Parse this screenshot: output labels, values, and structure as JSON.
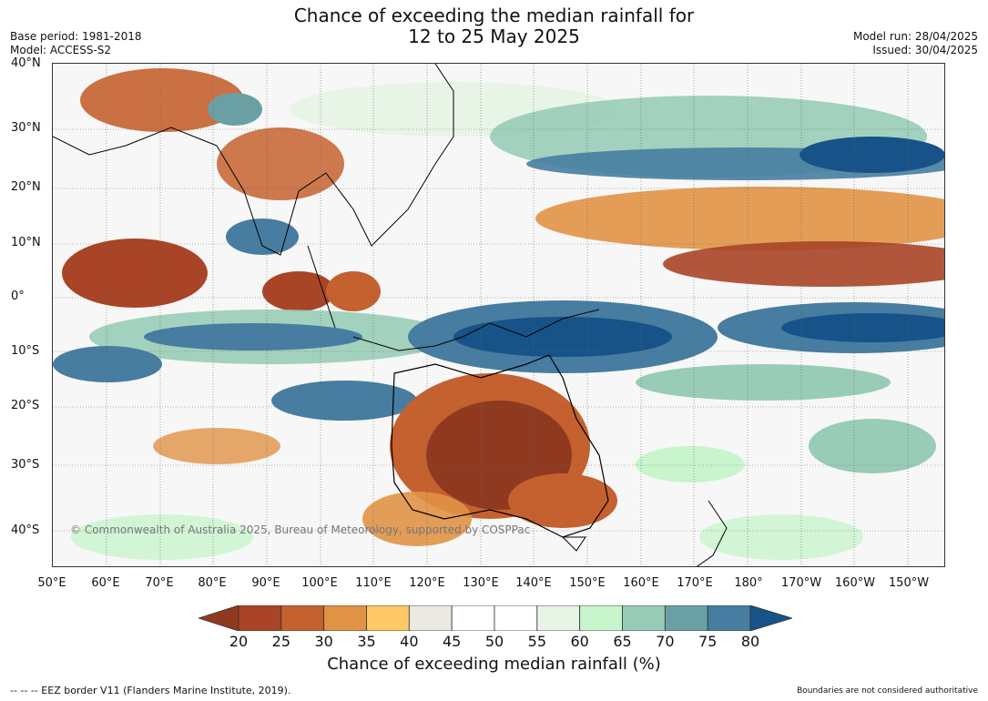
{
  "header": {
    "title_line1": "Chance of exceeding the median rainfall for",
    "title_line2": "12 to 25 May 2025",
    "base_period": "Base period: 1981-2018",
    "model": "Model: ACCESS-S2",
    "model_run": "Model run: 28/04/2025",
    "issued": "Issued: 30/04/2025"
  },
  "map": {
    "lat_labels": [
      "40°N",
      "30°N",
      "20°N",
      "10°N",
      "0°",
      "10°S",
      "20°S",
      "30°S",
      "40°S"
    ],
    "lon_labels": [
      "50°E",
      "60°E",
      "70°E",
      "80°E",
      "90°E",
      "100°E",
      "110°E",
      "120°E",
      "130°E",
      "140°E",
      "150°E",
      "160°E",
      "170°E",
      "180°",
      "170°W",
      "160°W",
      "150°W"
    ],
    "copyright": "© Commonwealth of Australia 2025, Bureau of Meteorology, supported by COSPPac"
  },
  "colorbar": {
    "ticks": [
      "20",
      "25",
      "30",
      "35",
      "40",
      "45",
      "50",
      "55",
      "60",
      "65",
      "70",
      "75",
      "80"
    ],
    "colors": [
      "#8f3a20",
      "#a94426",
      "#c5612f",
      "#e09245",
      "#fdc865",
      "#ece9e2",
      "#ffffff",
      "#ffffff",
      "#e8f5e6",
      "#c8f5cc",
      "#98ccb6",
      "#6aa0a4",
      "#467da0",
      "#175388"
    ],
    "label": "Chance of exceeding median rainfall (%)"
  },
  "footer": {
    "eez": "--  --  -- EEZ border V11 (Flanders Marine Institute, 2019).",
    "disclaimer": "Boundaries are not considered authoritative"
  }
}
